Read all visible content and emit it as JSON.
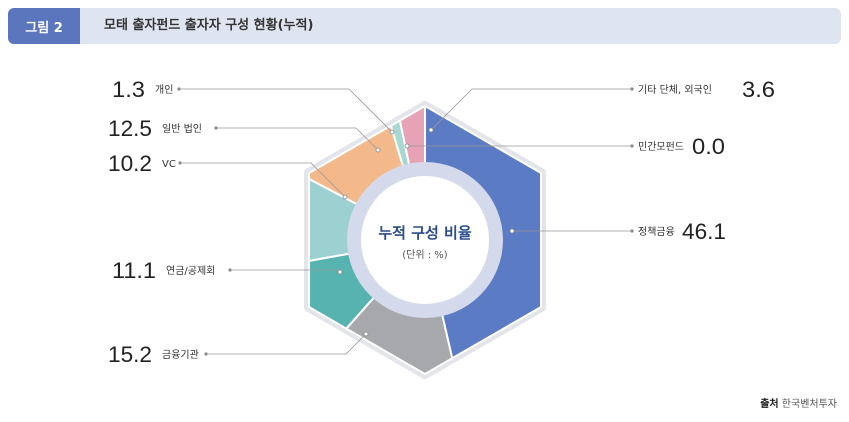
{
  "header": {
    "tag": "그림 2",
    "title": "모태 출자펀드 출자자 구성 현황(누적)"
  },
  "center": {
    "title": "누적 구성 비율",
    "unit": "(단위 : %)"
  },
  "source": {
    "label": "출처",
    "value": "한국벤처투자"
  },
  "chart_data": {
    "type": "pie",
    "style": "hexagonal donut",
    "unit": "%",
    "slices": [
      {
        "name": "정책금융",
        "value": 46.1,
        "value_label": "46.1",
        "color": "#5b7cc4"
      },
      {
        "name": "금융기관",
        "value": 15.2,
        "value_label": "15.2",
        "color": "#a6a8ac"
      },
      {
        "name": "연금/공제회",
        "value": 11.1,
        "value_label": "11.1",
        "color": "#57b3b0"
      },
      {
        "name": "VC",
        "value": 10.2,
        "value_label": "10.2",
        "color": "#9dd1d1"
      },
      {
        "name": "일반 법인",
        "value": 12.5,
        "value_label": "12.5",
        "color": "#f3b98b"
      },
      {
        "name": "개인",
        "value": 1.3,
        "value_label": "1.3",
        "color": "#a9d8d4"
      },
      {
        "name": "기타 단체, 외국인",
        "value": 3.6,
        "value_label": "3.6",
        "color": "#e7a2b6"
      },
      {
        "name": "민간모펀드",
        "value": 0.0,
        "value_label": "0.0",
        "color": "#d9a0b0"
      }
    ]
  }
}
